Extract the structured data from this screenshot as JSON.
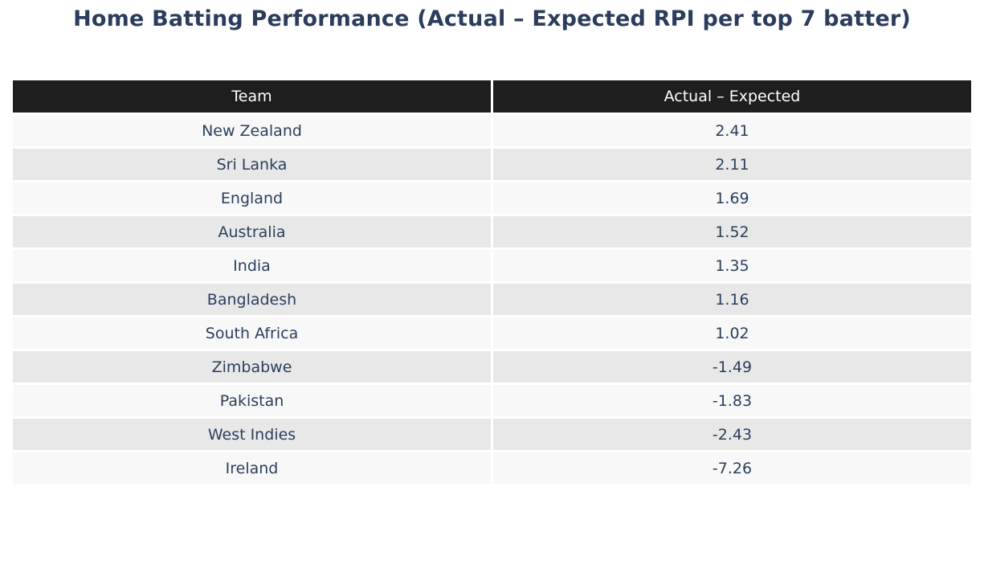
{
  "title": "Home Batting Performance (Actual – Expected RPI per top 7 batter)",
  "table": {
    "columns": [
      "Team",
      "Actual – Expected"
    ],
    "rows": [
      {
        "team": "New Zealand",
        "value": "2.41"
      },
      {
        "team": "Sri Lanka",
        "value": "2.11"
      },
      {
        "team": "England",
        "value": "1.69"
      },
      {
        "team": "Australia",
        "value": "1.52"
      },
      {
        "team": "India",
        "value": "1.35"
      },
      {
        "team": "Bangladesh",
        "value": "1.16"
      },
      {
        "team": "South Africa",
        "value": "1.02"
      },
      {
        "team": "Zimbabwe",
        "value": "-1.49"
      },
      {
        "team": "Pakistan",
        "value": "-1.83"
      },
      {
        "team": "West Indies",
        "value": "-2.43"
      },
      {
        "team": "Ireland",
        "value": "-7.26"
      }
    ]
  },
  "colors": {
    "page_bg": "#ffffff",
    "title_text": "#2b3c5c",
    "header_bg": "#1e1e1e",
    "header_text": "#ffffff",
    "row_odd_bg": "#f8f8f8",
    "row_even_bg": "#e8e8e8",
    "body_text": "#2c3e5c",
    "cell_border": "#ffffff"
  },
  "chart_data": {
    "type": "table",
    "title": "Home Batting Performance (Actual – Expected RPI per top 7 batter)",
    "columns": [
      "Team",
      "Actual – Expected"
    ],
    "rows": [
      [
        "New Zealand",
        2.41
      ],
      [
        "Sri Lanka",
        2.11
      ],
      [
        "England",
        1.69
      ],
      [
        "Australia",
        1.52
      ],
      [
        "India",
        1.35
      ],
      [
        "Bangladesh",
        1.16
      ],
      [
        "South Africa",
        1.02
      ],
      [
        "Zimbabwe",
        -1.49
      ],
      [
        "Pakistan",
        -1.83
      ],
      [
        "West Indies",
        -2.43
      ],
      [
        "Ireland",
        -7.26
      ]
    ],
    "layout_hints": {
      "header_style": "dark",
      "row_striping": true,
      "value_alignment": "center",
      "sorted_by": "value_descending"
    }
  }
}
